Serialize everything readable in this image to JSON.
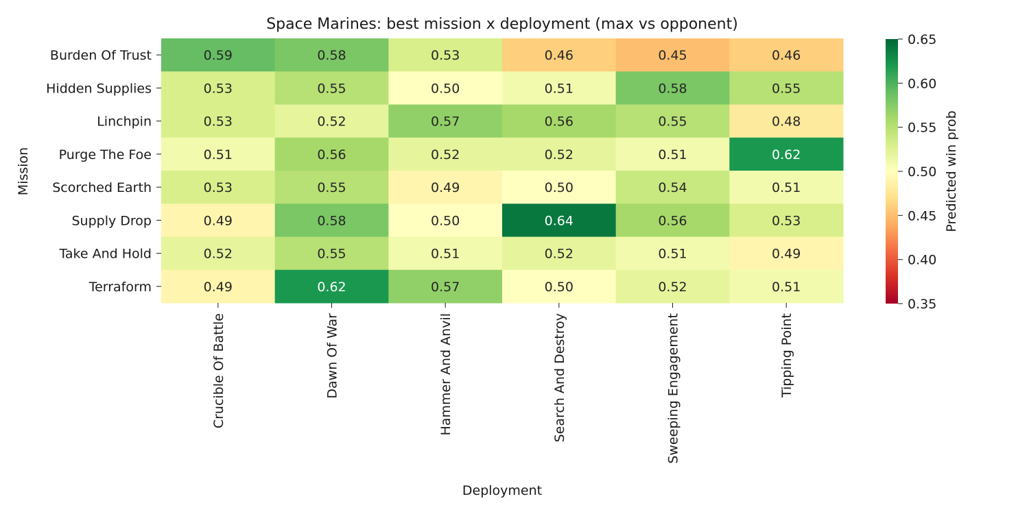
{
  "chart_data": {
    "type": "heatmap",
    "title": "Space Marines: best mission x deployment (max vs opponent)",
    "xlabel": "Deployment",
    "ylabel": "Mission",
    "colorbar_label": "Predicted win prob",
    "colormap": "RdYlGn",
    "vmin": 0.35,
    "vmax": 0.65,
    "colorbar_ticks": [
      "0.35",
      "0.40",
      "0.45",
      "0.50",
      "0.55",
      "0.60",
      "0.65"
    ],
    "x_categories": [
      "Crucible Of Battle",
      "Dawn Of War",
      "Hammer And Anvil",
      "Search And Destroy",
      "Sweeping Engagement",
      "Tipping Point"
    ],
    "y_categories": [
      "Burden Of Trust",
      "Hidden Supplies",
      "Linchpin",
      "Purge The Foe",
      "Scorched Earth",
      "Supply Drop",
      "Take And Hold",
      "Terraform"
    ],
    "values": [
      [
        0.59,
        0.58,
        0.53,
        0.46,
        0.45,
        0.46
      ],
      [
        0.53,
        0.55,
        0.5,
        0.51,
        0.58,
        0.55
      ],
      [
        0.53,
        0.52,
        0.57,
        0.56,
        0.55,
        0.48
      ],
      [
        0.51,
        0.56,
        0.52,
        0.52,
        0.51,
        0.62
      ],
      [
        0.53,
        0.55,
        0.49,
        0.5,
        0.54,
        0.51
      ],
      [
        0.49,
        0.58,
        0.5,
        0.64,
        0.56,
        0.53
      ],
      [
        0.52,
        0.55,
        0.51,
        0.52,
        0.51,
        0.49
      ],
      [
        0.49,
        0.62,
        0.57,
        0.5,
        0.52,
        0.51
      ]
    ],
    "value_format": "0.00",
    "grid": false
  }
}
